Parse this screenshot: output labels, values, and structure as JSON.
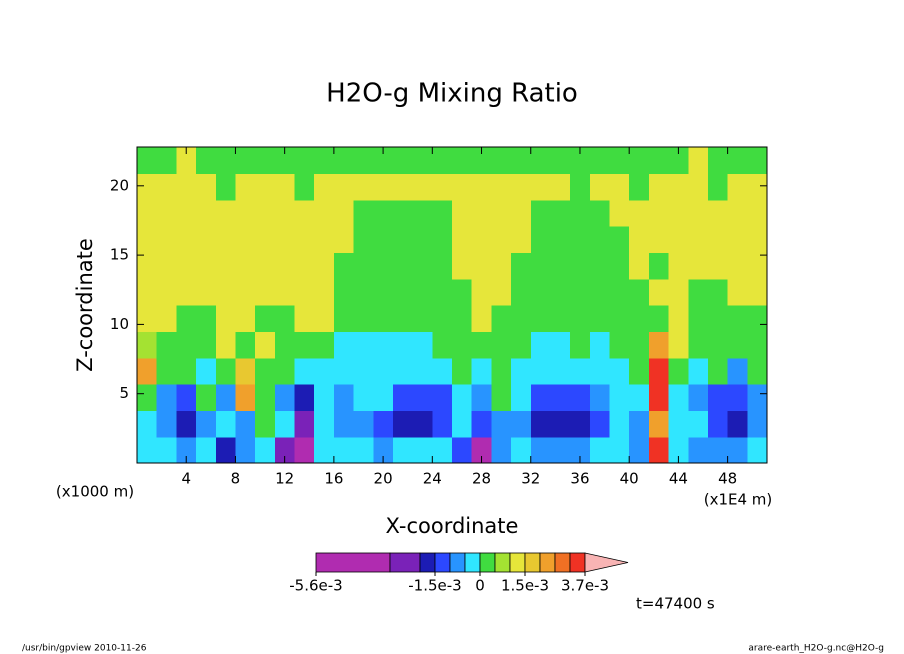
{
  "chart_data": {
    "type": "contourf",
    "title": "H2O-g Mixing Ratio",
    "x_label": "X-coordinate",
    "y_label": "Z-coordinate",
    "x_unit_left": "(x1000 m)",
    "x_unit_right": "(x1E4 m)",
    "time_label": "t=47400 s",
    "footer_left": "/usr/bin/gpview  2010-11-26",
    "footer_right": "arare-earth_H2O-g.nc@H2O-g",
    "xlim": [
      0,
      51.2
    ],
    "ylim": [
      0,
      22.8
    ],
    "xticks": [
      4,
      8,
      12,
      16,
      20,
      24,
      28,
      32,
      36,
      40,
      44,
      48
    ],
    "yticks": [
      5,
      10,
      15,
      20
    ],
    "x": [
      0.8,
      2.4,
      4,
      5.6,
      7.2,
      8.8,
      10.4,
      12,
      13.6,
      15.2,
      16.8,
      18.4,
      20,
      21.6,
      23.2,
      24.8,
      26.4,
      28,
      29.6,
      31.2,
      32.8,
      34.4,
      36,
      37.6,
      39.2,
      40.8,
      42.4,
      44,
      45.6,
      47.2,
      48.8,
      50.4
    ],
    "y": [
      0.95,
      2.85,
      4.75,
      6.65,
      8.55,
      10.45,
      12.35,
      14.25,
      16.15,
      18.05,
      19.95,
      21.85
    ],
    "z": [
      [
        -0.0003,
        -0.0003,
        -0.0008,
        -0.0003,
        -0.0018,
        -0.0008,
        -0.0003,
        -0.0023,
        -0.003,
        -0.0003,
        -0.0003,
        -0.0003,
        -0.0008,
        -0.0003,
        -0.0003,
        -0.0003,
        -0.0013,
        -0.003,
        -0.0008,
        -0.0003,
        -0.0008,
        -0.0008,
        -0.0008,
        -0.0003,
        -0.0003,
        -0.0008,
        0.0033,
        -0.0003,
        -0.0008,
        -0.0008,
        -0.0008,
        -0.0003
      ],
      [
        -0.0003,
        -0.0008,
        -0.0018,
        -0.0008,
        -0.0003,
        -0.0008,
        0.0003,
        -0.0003,
        -0.0023,
        -0.0003,
        -0.0008,
        -0.0008,
        -0.0013,
        -0.0018,
        -0.0018,
        -0.0013,
        -0.0003,
        -0.0013,
        -0.0008,
        -0.0008,
        -0.0018,
        -0.0018,
        -0.0018,
        -0.0013,
        -0.0003,
        -0.0008,
        0.0022,
        -0.0003,
        -0.0003,
        -0.0013,
        -0.0018,
        -0.0008
      ],
      [
        0.0003,
        -0.0008,
        -0.0013,
        0.0003,
        -0.0008,
        0.0022,
        0.0003,
        -0.0008,
        -0.0018,
        -0.0003,
        -0.0008,
        -0.0003,
        -0.0003,
        -0.0013,
        -0.0013,
        -0.0013,
        -0.0003,
        -0.0008,
        0.0003,
        -0.0003,
        -0.0013,
        -0.0013,
        -0.0013,
        -0.0008,
        -0.0003,
        -0.0003,
        0.0033,
        -0.0003,
        -0.0008,
        -0.0013,
        -0.0013,
        -0.0008
      ],
      [
        0.0022,
        0.0003,
        0.0003,
        -0.0003,
        0.0003,
        0.0017,
        0.0003,
        0.0003,
        -0.0003,
        -0.0003,
        -0.0003,
        -0.0003,
        -0.0003,
        -0.0003,
        -0.0003,
        -0.0003,
        0.0003,
        -0.0003,
        0.0003,
        -0.0003,
        -0.0003,
        -0.0003,
        -0.0003,
        -0.0003,
        -0.0003,
        0.0003,
        0.0033,
        0.0003,
        -0.0003,
        0.0003,
        -0.0008,
        0.0003
      ],
      [
        0.0008,
        0.0003,
        0.0003,
        0.0003,
        0.0012,
        0.0003,
        0.0012,
        0.0003,
        0.0003,
        0.0003,
        -0.0003,
        -0.0003,
        -0.0003,
        -0.0003,
        -0.0003,
        0.0003,
        0.0003,
        0.0003,
        0.0003,
        0.0003,
        -0.0003,
        -0.0003,
        0.0003,
        -0.0003,
        0.0003,
        0.0003,
        0.0022,
        0.0012,
        0.0003,
        0.0003,
        0.0003,
        0.0003
      ],
      [
        0.0012,
        0.0012,
        0.0003,
        0.0003,
        0.0012,
        0.0012,
        0.0003,
        0.0003,
        0.0012,
        0.0012,
        0.0003,
        0.0003,
        0.0003,
        0.0003,
        0.0003,
        0.0003,
        0.0003,
        0.0012,
        0.0003,
        0.0003,
        0.0003,
        0.0003,
        0.0003,
        0.0003,
        0.0003,
        0.0003,
        0.0003,
        0.0012,
        0.0003,
        0.0003,
        0.0003,
        0.0003
      ],
      [
        0.0012,
        0.0012,
        0.0012,
        0.0012,
        0.0012,
        0.0012,
        0.0012,
        0.0012,
        0.0012,
        0.0012,
        0.0003,
        0.0003,
        0.0003,
        0.0003,
        0.0003,
        0.0003,
        0.0003,
        0.0012,
        0.0012,
        0.0003,
        0.0003,
        0.0003,
        0.0003,
        0.0003,
        0.0003,
        0.0003,
        0.0012,
        0.0012,
        0.0003,
        0.0003,
        0.0012,
        0.0012
      ],
      [
        0.0012,
        0.0012,
        0.0012,
        0.0012,
        0.0012,
        0.0012,
        0.0012,
        0.0012,
        0.0012,
        0.0012,
        0.0003,
        0.0003,
        0.0003,
        0.0003,
        0.0003,
        0.0003,
        0.0012,
        0.0012,
        0.0012,
        0.0003,
        0.0003,
        0.0003,
        0.0003,
        0.0003,
        0.0003,
        0.0012,
        0.0003,
        0.0012,
        0.0012,
        0.0012,
        0.0012,
        0.0012
      ],
      [
        0.0012,
        0.0012,
        0.0012,
        0.0012,
        0.0012,
        0.0012,
        0.0012,
        0.0012,
        0.0012,
        0.0012,
        0.0012,
        0.0003,
        0.0003,
        0.0003,
        0.0003,
        0.0003,
        0.0012,
        0.0012,
        0.0012,
        0.0012,
        0.0003,
        0.0003,
        0.0003,
        0.0003,
        0.0003,
        0.0012,
        0.0012,
        0.0012,
        0.0012,
        0.0012,
        0.0012,
        0.0012
      ],
      [
        0.0012,
        0.0012,
        0.0012,
        0.0012,
        0.0012,
        0.0012,
        0.0012,
        0.0012,
        0.0012,
        0.0012,
        0.0012,
        0.0003,
        0.0003,
        0.0003,
        0.0003,
        0.0003,
        0.0012,
        0.0012,
        0.0012,
        0.0012,
        0.0003,
        0.0003,
        0.0003,
        0.0003,
        0.0012,
        0.0012,
        0.0012,
        0.0012,
        0.0012,
        0.0012,
        0.0012,
        0.0012
      ],
      [
        0.0012,
        0.0012,
        0.0012,
        0.0012,
        0.0003,
        0.0012,
        0.0012,
        0.0012,
        0.0003,
        0.0012,
        0.0012,
        0.0012,
        0.0012,
        0.0012,
        0.0012,
        0.0012,
        0.0012,
        0.0012,
        0.0012,
        0.0012,
        0.0012,
        0.0012,
        0.0003,
        0.0012,
        0.0012,
        0.0003,
        0.0012,
        0.0012,
        0.0012,
        0.0003,
        0.0012,
        0.0012
      ],
      [
        0.0003,
        0.0003,
        0.0012,
        0.0003,
        0.0003,
        0.0003,
        0.0003,
        0.0003,
        0.0003,
        0.0003,
        0.0003,
        0.0003,
        0.0003,
        0.0003,
        0.0003,
        0.0003,
        0.0003,
        0.0003,
        0.0003,
        0.0003,
        0.0003,
        0.0003,
        0.0003,
        0.0003,
        0.0003,
        0.0003,
        0.0003,
        0.0003,
        0.0012,
        0.0003,
        0.0003,
        0.0003
      ]
    ],
    "colorbar": {
      "levels": [
        -0.0056,
        -0.0025,
        -0.002,
        -0.0015,
        -0.001,
        -0.0005,
        0,
        0.0005,
        0.001,
        0.0015,
        0.002,
        0.0025,
        0.003,
        0.0037
      ],
      "colors": [
        "#b02cb0",
        "#7a22b8",
        "#1c1cb4",
        "#2c48ff",
        "#2894ff",
        "#30e6ff",
        "#40dc40",
        "#a4e232",
        "#e6e63a",
        "#e8c830",
        "#f0a02c",
        "#f07024",
        "#f03224",
        "#f8b4b4"
      ],
      "ticks": [
        {
          "value": -0.0056,
          "label": "-5.6e-3"
        },
        {
          "value": -0.0015,
          "label": "-1.5e-3"
        },
        0,
        {
          "value": 0.0015,
          "label": "1.5e-3"
        },
        {
          "value": 0.0037,
          "label": "3.7e-3"
        }
      ]
    }
  }
}
